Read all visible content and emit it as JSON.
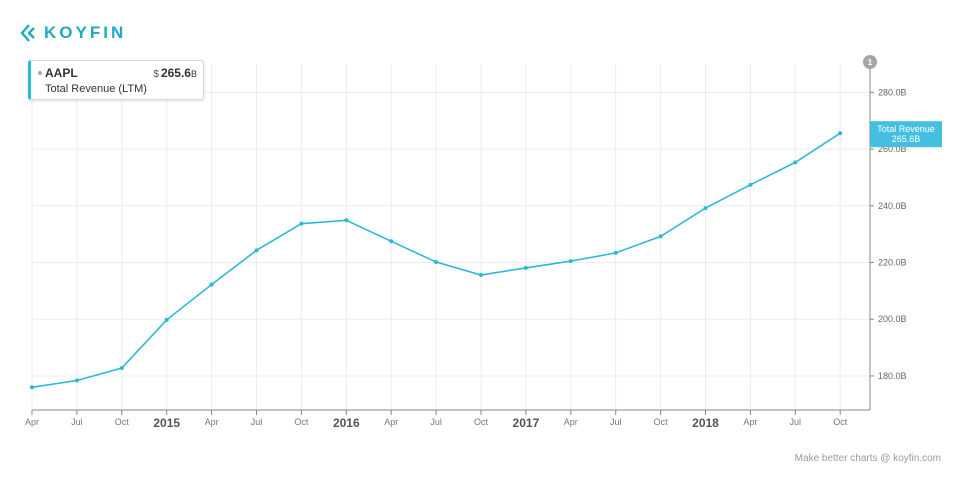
{
  "logo": {
    "text": "KOYFIN",
    "icon": "koyfin-logo-icon"
  },
  "legend": {
    "ticker": "AAPL",
    "metric": "Total Revenue (LTM)",
    "currency": "$",
    "value": "265.6",
    "unit": "B"
  },
  "badge": "1",
  "value_tag": {
    "label": "Total Revenue",
    "value": "265.6B"
  },
  "footer": "Make better charts @ koyfin.com",
  "colors": {
    "brand": "#1fa9c6",
    "line": "#2db8d8",
    "tag_bg": "#44bfe0",
    "grid": "#ececec",
    "axis": "#888888",
    "badge": "#a6a6a6"
  },
  "chart_data": {
    "type": "line",
    "title": "",
    "xlabel": "",
    "ylabel": "",
    "x_ticks": [
      "Apr",
      "Jul",
      "Oct",
      "2015",
      "Apr",
      "Jul",
      "Oct",
      "2016",
      "Apr",
      "Jul",
      "Oct",
      "2017",
      "Apr",
      "Jul",
      "Oct",
      "2018",
      "Apr",
      "Jul",
      "Oct"
    ],
    "x_tick_bold": [
      false,
      false,
      false,
      true,
      false,
      false,
      false,
      true,
      false,
      false,
      false,
      true,
      false,
      false,
      false,
      true,
      false,
      false,
      false
    ],
    "y_ticks": [
      180,
      200,
      220,
      240,
      260,
      280
    ],
    "y_tick_labels": [
      "180.0B",
      "200.0B",
      "220.0B",
      "240.0B",
      "260.0B",
      "280.0B"
    ],
    "ylim": [
      168,
      290
    ],
    "y_axis_side": "right",
    "grid": true,
    "series": [
      {
        "name": "AAPL",
        "values": [
          176.0,
          178.4,
          182.8,
          199.8,
          212.2,
          224.3,
          233.7,
          234.9,
          227.5,
          220.2,
          215.6,
          218.1,
          220.5,
          223.4,
          229.2,
          239.2,
          247.4,
          255.3,
          265.6
        ]
      }
    ]
  }
}
